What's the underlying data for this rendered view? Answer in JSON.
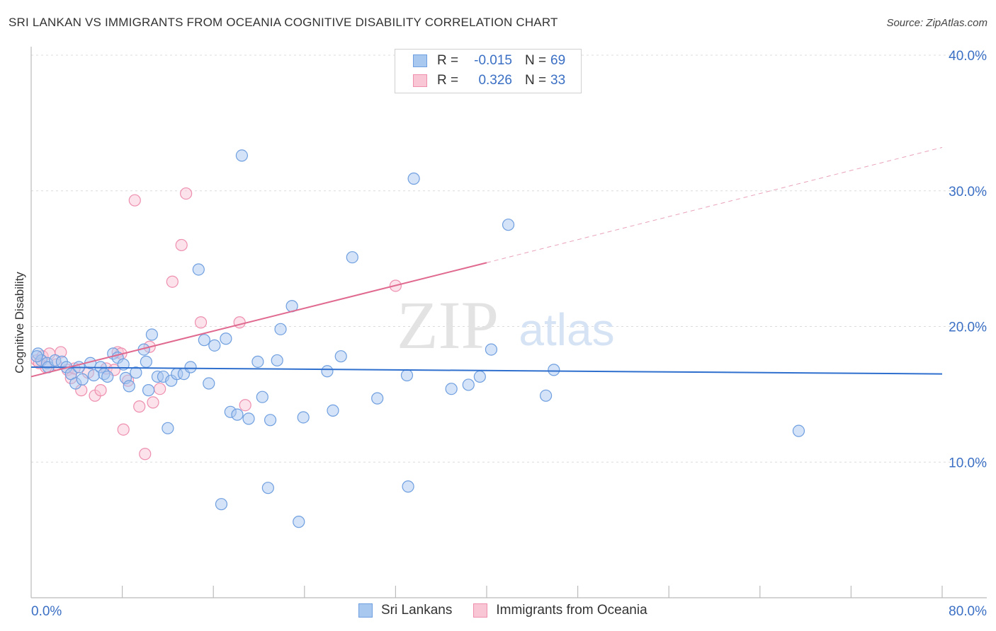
{
  "title": "SRI LANKAN VS IMMIGRANTS FROM OCEANIA COGNITIVE DISABILITY CORRELATION CHART",
  "source": "Source: ZipAtlas.com",
  "watermark": {
    "zip": "ZIP",
    "atlas": "atlas"
  },
  "legend_top": [
    {
      "r_label": "R =",
      "r_value": "-0.015",
      "n_label": "N =",
      "n_value": "69",
      "color": "#a9c8f0",
      "border": "#6f9fe0"
    },
    {
      "r_label": "R =",
      "r_value": "0.326",
      "n_label": "N =",
      "n_value": "33",
      "color": "#f9c6d6",
      "border": "#ee8fae"
    }
  ],
  "legend_bottom": [
    {
      "label": "Sri Lankans",
      "color": "#a9c8f0",
      "border": "#6f9fe0"
    },
    {
      "label": "Immigrants from Oceania",
      "color": "#f9c6d6",
      "border": "#ee8fae"
    }
  ],
  "chart_data": {
    "type": "scatter",
    "title": "SRI LANKAN VS IMMIGRANTS FROM OCEANIA COGNITIVE DISABILITY CORRELATION CHART",
    "xlabel": "",
    "ylabel": "Cognitive Disability",
    "xlim": [
      0,
      80
    ],
    "ylim": [
      0,
      40
    ],
    "x_tick_labels": [
      "0.0%",
      "80.0%"
    ],
    "y_ticks": [
      10,
      20,
      30,
      40
    ],
    "y_tick_labels": [
      "10.0%",
      "20.0%",
      "30.0%",
      "40.0%"
    ],
    "grid": true,
    "series": [
      {
        "name": "Sri Lankans",
        "color": "#6f9fe0",
        "fill": "#a9c8f0",
        "trend": {
          "x0": 0,
          "y0": 17.0,
          "x1": 80,
          "y1": 16.5
        },
        "points": [
          [
            0.6,
            18.0
          ],
          [
            0.9,
            17.5
          ],
          [
            1.4,
            17.3
          ],
          [
            1.5,
            17.0
          ],
          [
            2.1,
            17.5
          ],
          [
            2.7,
            17.4
          ],
          [
            3.1,
            17.0
          ],
          [
            3.5,
            16.5
          ],
          [
            3.9,
            15.8
          ],
          [
            4.2,
            17.0
          ],
          [
            4.5,
            16.1
          ],
          [
            5.2,
            17.3
          ],
          [
            5.5,
            16.4
          ],
          [
            6.1,
            17.0
          ],
          [
            6.4,
            16.5
          ],
          [
            6.7,
            16.3
          ],
          [
            7.2,
            18.0
          ],
          [
            7.6,
            17.7
          ],
          [
            8.1,
            17.2
          ],
          [
            8.3,
            16.2
          ],
          [
            8.6,
            15.6
          ],
          [
            9.2,
            16.6
          ],
          [
            9.9,
            18.3
          ],
          [
            10.1,
            17.4
          ],
          [
            10.3,
            15.3
          ],
          [
            10.6,
            19.4
          ],
          [
            11.1,
            16.3
          ],
          [
            11.6,
            16.3
          ],
          [
            12.0,
            12.5
          ],
          [
            12.3,
            16.0
          ],
          [
            12.8,
            16.5
          ],
          [
            13.4,
            16.5
          ],
          [
            14.0,
            17.0
          ],
          [
            14.7,
            24.2
          ],
          [
            15.2,
            19.0
          ],
          [
            15.6,
            15.8
          ],
          [
            16.1,
            18.6
          ],
          [
            16.7,
            6.9
          ],
          [
            17.1,
            19.1
          ],
          [
            17.5,
            13.7
          ],
          [
            18.1,
            13.5
          ],
          [
            18.5,
            32.6
          ],
          [
            19.1,
            13.2
          ],
          [
            19.9,
            17.4
          ],
          [
            20.3,
            14.8
          ],
          [
            20.8,
            8.1
          ],
          [
            21.0,
            13.1
          ],
          [
            21.6,
            17.5
          ],
          [
            21.9,
            19.8
          ],
          [
            22.9,
            21.5
          ],
          [
            23.5,
            5.6
          ],
          [
            23.9,
            13.3
          ],
          [
            26.0,
            16.7
          ],
          [
            26.5,
            13.8
          ],
          [
            27.2,
            17.8
          ],
          [
            28.2,
            25.1
          ],
          [
            30.4,
            14.7
          ],
          [
            33.0,
            16.4
          ],
          [
            33.1,
            8.2
          ],
          [
            33.6,
            30.9
          ],
          [
            36.9,
            15.4
          ],
          [
            38.4,
            15.7
          ],
          [
            39.4,
            16.3
          ],
          [
            40.4,
            18.3
          ],
          [
            41.9,
            27.5
          ],
          [
            45.2,
            14.9
          ],
          [
            45.9,
            16.8
          ],
          [
            67.4,
            12.3
          ],
          [
            0.5,
            17.8
          ]
        ]
      },
      {
        "name": "Immigrants from Oceania",
        "color": "#ee8fae",
        "fill": "#f9c6d6",
        "trend": {
          "x0": 0,
          "y0": 16.3,
          "x1": 40,
          "y1": 24.7
        },
        "trend_dashed": {
          "x0": 40,
          "y0": 24.7,
          "x1": 80,
          "y1": 33.2
        },
        "points": [
          [
            0.5,
            17.5
          ],
          [
            1.0,
            17.8
          ],
          [
            1.6,
            18.0
          ],
          [
            2.2,
            17.2
          ],
          [
            2.6,
            18.1
          ],
          [
            3.2,
            16.8
          ],
          [
            3.5,
            16.2
          ],
          [
            3.8,
            16.9
          ],
          [
            4.4,
            15.3
          ],
          [
            5.0,
            16.6
          ],
          [
            5.6,
            14.9
          ],
          [
            6.1,
            15.3
          ],
          [
            6.6,
            16.9
          ],
          [
            7.3,
            16.8
          ],
          [
            7.6,
            18.1
          ],
          [
            7.9,
            18.0
          ],
          [
            8.1,
            12.4
          ],
          [
            8.5,
            16.0
          ],
          [
            9.1,
            29.3
          ],
          [
            9.5,
            14.1
          ],
          [
            10.0,
            10.6
          ],
          [
            10.4,
            18.5
          ],
          [
            10.7,
            14.4
          ],
          [
            11.3,
            15.4
          ],
          [
            12.4,
            23.3
          ],
          [
            13.2,
            26.0
          ],
          [
            13.6,
            29.8
          ],
          [
            14.9,
            20.3
          ],
          [
            18.3,
            20.3
          ],
          [
            18.8,
            14.2
          ],
          [
            32.0,
            23.0
          ],
          [
            1.3,
            17.0
          ],
          [
            0.7,
            17.3
          ]
        ]
      }
    ]
  }
}
